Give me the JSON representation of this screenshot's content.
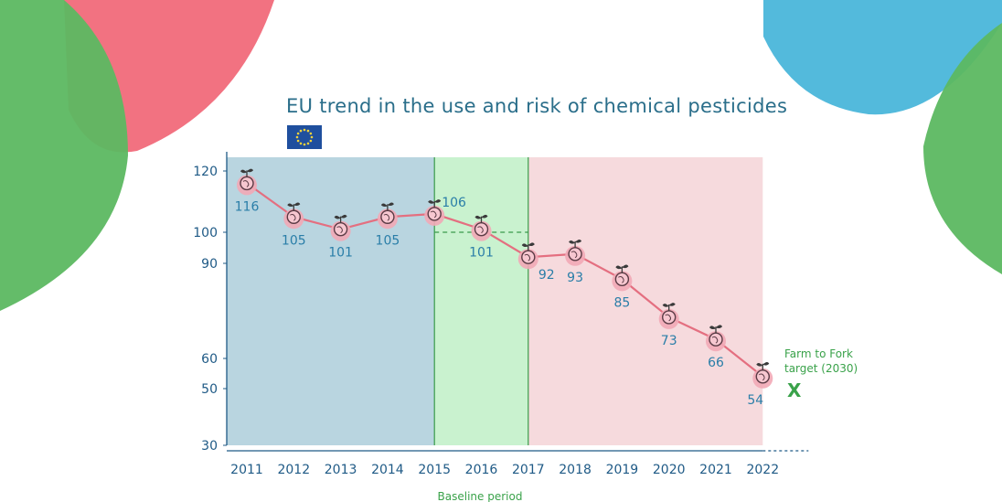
{
  "colors": {
    "period_before": "#b9d5e0",
    "period_baseline": "#c9f2cf",
    "period_after": "#f6dadd",
    "line": "#e46f80",
    "marker": "#f2a9b6",
    "axis_text": "#1f5a86",
    "title": "#2a6e8a",
    "target": "#3aa24a",
    "eu_flag": "#1f4f9e",
    "eu_stars": "#f3d33a"
  },
  "chart_data": {
    "type": "line",
    "title": "EU trend in the use and risk of chemical pesticides",
    "x": [
      2011,
      2012,
      2013,
      2014,
      2015,
      2016,
      2017,
      2018,
      2019,
      2020,
      2021,
      2022
    ],
    "y_ticks": [
      30,
      50,
      60,
      90,
      100,
      120
    ],
    "ylim": [
      30,
      125
    ],
    "series": [
      {
        "values": [
          116,
          105,
          101,
          105,
          106,
          101,
          92,
          93,
          85,
          73,
          66,
          54
        ]
      }
    ],
    "baseline_value": 100,
    "regions": [
      {
        "from": 2011,
        "to": 2015,
        "color": "#b9d5e0"
      },
      {
        "from": 2015,
        "to": 2017,
        "color": "#c9f2cf"
      },
      {
        "from": 2017,
        "to": 2022,
        "color": "#f6dadd"
      }
    ],
    "baseline_label": "Baseline period",
    "target": {
      "label_line1": "Farm to Fork",
      "label_line2": "target (2030)",
      "marker": "X"
    }
  }
}
